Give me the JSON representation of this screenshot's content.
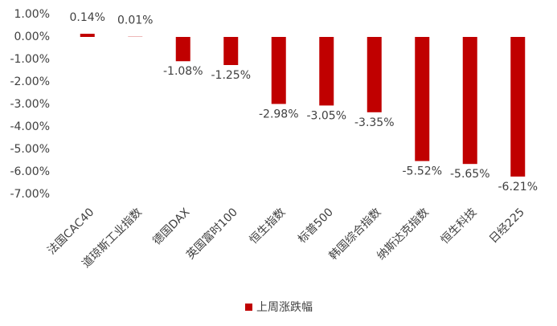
{
  "chart_data": {
    "type": "bar",
    "categories": [
      "法国CAC40",
      "道琼斯工业指数",
      "德国DAX",
      "英国富时100",
      "恒生指数",
      "标普500",
      "韩国综合指数",
      "纳斯达克指数",
      "恒生科技",
      "日经225"
    ],
    "series": [
      {
        "name": "上周涨跌幅",
        "color": "#c00000",
        "values": [
          0.14,
          0.01,
          -1.08,
          -1.25,
          -2.98,
          -3.05,
          -3.35,
          -5.52,
          -5.65,
          -6.21
        ],
        "value_labels": [
          "0.14%",
          "0.01%",
          "-1.08%",
          "-1.25%",
          "-2.98%",
          "-3.05%",
          "-3.35%",
          "-5.52%",
          "-5.65%",
          "-6.21%"
        ]
      }
    ],
    "ylim": [
      -7,
      1
    ],
    "yticks": [
      {
        "value": 1,
        "label": "1.00%"
      },
      {
        "value": 0,
        "label": "0.00%"
      },
      {
        "value": -1,
        "label": "-1.00%"
      },
      {
        "value": -2,
        "label": "-2.00%"
      },
      {
        "value": -3,
        "label": "-3.00%"
      },
      {
        "value": -4,
        "label": "-4.00%"
      },
      {
        "value": -5,
        "label": "-5.00%"
      },
      {
        "value": -6,
        "label": "-6.00%"
      },
      {
        "value": -7,
        "label": "-7.00%"
      }
    ],
    "legend": "bottom"
  }
}
